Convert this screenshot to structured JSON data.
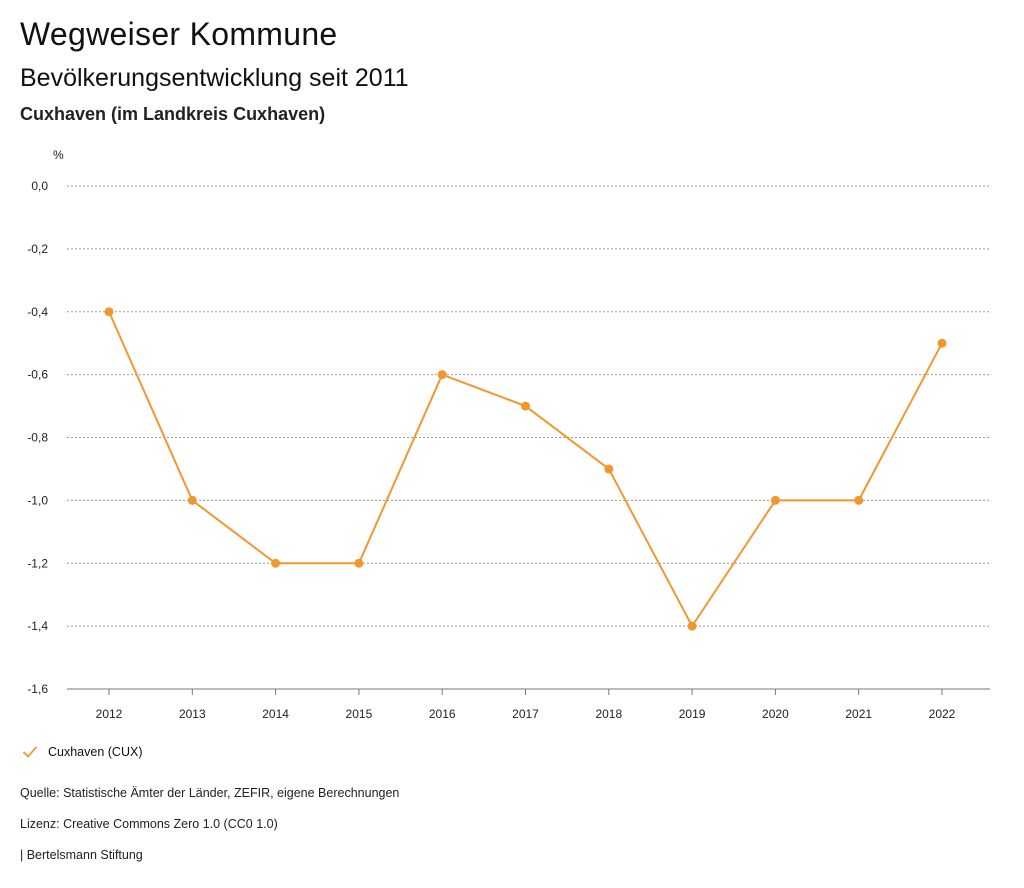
{
  "header": {
    "title": "Wegweiser Kommune",
    "subtitle": "Bevölkerungsentwicklung seit 2011",
    "region": "Cuxhaven (im Landkreis Cuxhaven)"
  },
  "legend": {
    "label": "Cuxhaven (CUX)"
  },
  "footer": {
    "source": "Quelle: Statistische Ämter der Länder, ZEFIR, eigene Berechnungen",
    "license": "Lizenz: Creative Commons Zero 1.0 (CC0 1.0)",
    "publisher": "| Bertelsmann Stiftung"
  },
  "colors": {
    "series": "#f0982f",
    "grid": "#9a9a9a"
  },
  "chart_data": {
    "type": "line",
    "ylabel": "%",
    "categories": [
      "2012",
      "2013",
      "2014",
      "2015",
      "2016",
      "2017",
      "2018",
      "2019",
      "2020",
      "2021",
      "2022"
    ],
    "series": [
      {
        "name": "Cuxhaven (CUX)",
        "values": [
          -0.4,
          -1.0,
          -1.2,
          -1.2,
          -0.6,
          -0.7,
          -0.9,
          -1.4,
          -1.0,
          -1.0,
          -0.5
        ]
      }
    ],
    "ylim": [
      -1.6,
      0.0
    ],
    "yticks": [
      "0,0",
      "-0,2",
      "-0,4",
      "-0,6",
      "-0,8",
      "-1,0",
      "-1,2",
      "-1,4",
      "-1,6"
    ],
    "grid": true,
    "legend_position": "bottom-left"
  }
}
